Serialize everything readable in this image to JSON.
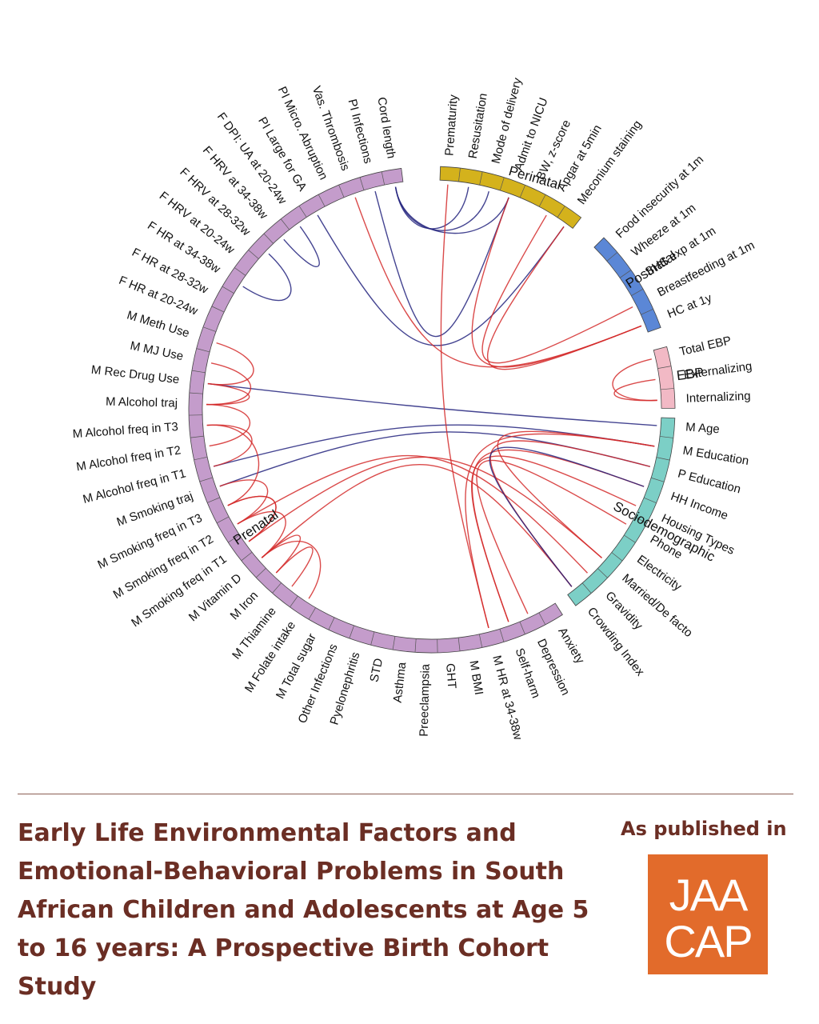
{
  "diagram": {
    "groups": [
      {
        "name": "Perinatal",
        "color": "#d4b21c",
        "items": [
          "Prematurity",
          "Resusitation",
          "Mode of delivery",
          "Admit to NICU",
          "BW, z-score",
          "Apgar at 5min",
          "Meconium staining"
        ]
      },
      {
        "name": "Postnatal",
        "color": "#5b87d6",
        "items": [
          "Food insecurity at 1m",
          "Wheeze at 1m",
          "SHS exp at 1m",
          "Breastfeeding at 1m",
          "HC at 1y"
        ]
      },
      {
        "name": "EBP",
        "color": "#f2b9c5",
        "items": [
          "Total EBP",
          "Externalizing",
          "Internalizing"
        ]
      },
      {
        "name": "Sociodemographic",
        "color": "#7ccfc6",
        "items": [
          "M Age",
          "M Education",
          "P Education",
          "HH Income",
          "Housing Types",
          "Phone",
          "Electricity",
          "Married/De facto",
          "Gravidity",
          "Crowding Index"
        ]
      },
      {
        "name": "Prenatal",
        "color": "#c49ccb",
        "items": [
          "Anxiety",
          "Depression",
          "Self-harm",
          "M HR at 34-38w",
          "M BMI",
          "GHT",
          "Preeclampsia",
          "Asthma",
          "STD",
          "Pyelonephritis",
          "Other Infections",
          "M Total sugar",
          "M Folate intake",
          "M Thiamine",
          "M Iron",
          "M Vitamin D",
          "M Smoking freq in T1",
          "M Smoking freq in T2",
          "M Smoking freq in T3",
          "M Smoking traj",
          "M Alcohol freq in T1",
          "M Alcohol freq in T2",
          "M Alcohol freq in T3",
          "M Alcohol traj",
          "M Rec Drug Use",
          "M MJ Use",
          "M Meth Use",
          "F HR at 20-24w",
          "F HR at 28-32w",
          "F HR at 34-38w",
          "F HRV at 20-24w",
          "F HRV at 28-32w",
          "F HRV at 34-38w",
          "F DPI: UA at 20-24w",
          "PI Large for GA",
          "PI Micro. Abruption",
          "Vas. Thrombosis",
          "PI Infections",
          "Cord length"
        ]
      }
    ],
    "colors": {
      "positive": "#d42a2a",
      "negative": "#23237e"
    },
    "links": [
      {
        "from": "Cord length",
        "to": "Admit to NICU",
        "type": "negative"
      },
      {
        "from": "Cord length",
        "to": "Mode of delivery",
        "type": "negative"
      },
      {
        "from": "Cord length",
        "to": "Resusitation",
        "type": "negative"
      },
      {
        "from": "PI Infections",
        "to": "Admit to NICU",
        "type": "negative"
      },
      {
        "from": "PI Large for GA",
        "to": "Meconium staining",
        "type": "negative"
      },
      {
        "from": "Vas. Thrombosis",
        "to": "HC at 1y",
        "type": "positive"
      },
      {
        "from": "F DPI: UA at 20-24w",
        "to": "F HRV at 34-38w",
        "type": "negative"
      },
      {
        "from": "F HRV at 28-32w",
        "to": "F HR at 34-38w",
        "type": "negative"
      },
      {
        "from": "M Rec Drug Use",
        "to": "M Age",
        "type": "negative"
      },
      {
        "from": "M Alcohol freq in T1",
        "to": "M Education",
        "type": "negative"
      },
      {
        "from": "M Smoking traj",
        "to": "P Education",
        "type": "negative"
      },
      {
        "from": "Admit to NICU",
        "to": "HC at 1y",
        "type": "positive"
      },
      {
        "from": "Apgar at 5min",
        "to": "Breastfeeding at 1m",
        "type": "positive"
      },
      {
        "from": "Meconium staining",
        "to": "HC at 1y",
        "type": "positive"
      },
      {
        "from": "M HR at 34-38w",
        "to": "M Education",
        "type": "positive"
      },
      {
        "from": "M HR at 34-38w",
        "to": "Prematurity",
        "type": "positive"
      },
      {
        "from": "Self-harm",
        "to": "HH Income",
        "type": "positive"
      },
      {
        "from": "Self-harm",
        "to": "Housing Types",
        "type": "positive"
      },
      {
        "from": "Depression",
        "to": "Phone",
        "type": "positive"
      },
      {
        "from": "M Smoking freq in T2",
        "to": "Gravidity",
        "type": "positive"
      },
      {
        "from": "M Smoking freq in T1",
        "to": "Married/De facto",
        "type": "positive"
      },
      {
        "from": "M Vitamin D",
        "to": "Crowding Index",
        "type": "positive"
      },
      {
        "from": "M Iron",
        "to": "M Vitamin D",
        "type": "positive"
      },
      {
        "from": "M Thiamine",
        "to": "M Iron",
        "type": "positive"
      },
      {
        "from": "M Folate intake",
        "to": "M Vitamin D",
        "type": "positive"
      },
      {
        "from": "M Smoking freq in T1",
        "to": "M Smoking freq in T3",
        "type": "positive"
      },
      {
        "from": "M Smoking freq in T2",
        "to": "M Smoking traj",
        "type": "positive"
      },
      {
        "from": "M Smoking freq in T3",
        "to": "M Smoking freq in T1",
        "type": "positive"
      },
      {
        "from": "M Alcohol freq in T1",
        "to": "M Alcohol freq in T3",
        "type": "positive"
      },
      {
        "from": "M Alcohol freq in T2",
        "to": "M Alcohol traj",
        "type": "positive"
      },
      {
        "from": "M Alcohol traj",
        "to": "M Rec Drug Use",
        "type": "positive"
      },
      {
        "from": "M Rec Drug Use",
        "to": "M Meth Use",
        "type": "positive"
      },
      {
        "from": "M MJ Use",
        "to": "M Alcohol traj",
        "type": "positive"
      },
      {
        "from": "M Alcohol freq in T3",
        "to": "M Smoking freq in T3",
        "type": "positive"
      },
      {
        "from": "M Vitamin D",
        "to": "M Smoking freq in T2",
        "type": "positive"
      },
      {
        "from": "Total EBP",
        "to": "Internalizing",
        "type": "positive"
      },
      {
        "from": "Externalizing",
        "to": "Internalizing",
        "type": "positive"
      },
      {
        "from": "M Education",
        "to": "Married/De facto",
        "type": "positive"
      },
      {
        "from": "P Education",
        "to": "Crowding Index",
        "type": "positive"
      },
      {
        "from": "HH Income",
        "to": "Crowding Index",
        "type": "negative"
      }
    ]
  },
  "footer": {
    "title": "Early Life Environmental Factors and Emotional-Behavioral Problems in South African Children and Adolescents at Age 5 to 16 years: A Prospective Birth Cohort Study",
    "published_label": "As published in",
    "logo": {
      "line1": "JAA",
      "line2": "CAP",
      "bg": "#e26b2b"
    }
  }
}
